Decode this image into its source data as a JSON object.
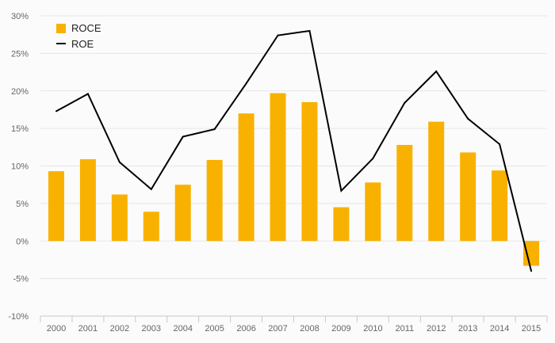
{
  "chart_data": {
    "type": "bar",
    "categories": [
      "2000",
      "2001",
      "2002",
      "2003",
      "2004",
      "2005",
      "2006",
      "2007",
      "2008",
      "2009",
      "2010",
      "2011",
      "2012",
      "2013",
      "2014",
      "2015"
    ],
    "series": [
      {
        "name": "ROCE",
        "type": "bar",
        "color": "#f9b100",
        "values": [
          9.3,
          10.9,
          6.2,
          3.9,
          7.5,
          10.8,
          17.0,
          19.7,
          18.5,
          4.5,
          7.8,
          12.8,
          15.9,
          11.8,
          9.4,
          -3.3
        ]
      },
      {
        "name": "ROE",
        "type": "line",
        "color": "#000000",
        "values": [
          17.3,
          19.6,
          10.5,
          6.9,
          13.9,
          14.9,
          21.0,
          27.4,
          28.0,
          6.7,
          11.0,
          18.4,
          22.6,
          16.3,
          12.9,
          -4.0
        ]
      }
    ],
    "ylim": [
      -10,
      30
    ],
    "yticks": [
      -10,
      -5,
      0,
      5,
      10,
      15,
      20,
      25,
      30
    ],
    "ytick_labels": [
      "-10%",
      "-5%",
      "0%",
      "5%",
      "10%",
      "15%",
      "20%",
      "25%",
      "30%"
    ],
    "grid": true,
    "legend_position": "top-left",
    "title": "",
    "xlabel": "",
    "ylabel": ""
  }
}
